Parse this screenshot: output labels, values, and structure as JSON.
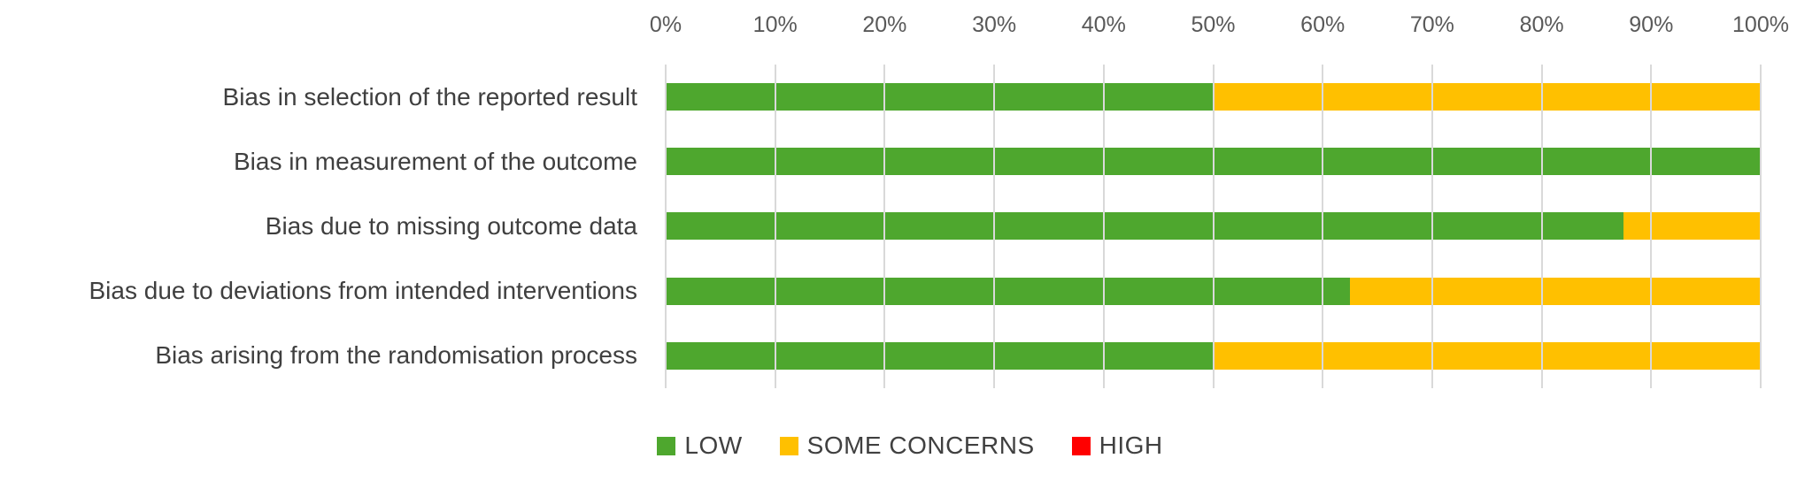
{
  "chart_data": {
    "type": "bar",
    "orientation": "horizontal",
    "stacked": true,
    "title": "",
    "categories": [
      "Bias in selection of the reported result",
      "Bias in measurement of the outcome",
      "Bias due to missing outcome data",
      "Bias due to deviations from intended interventions",
      "Bias arising from the randomisation process"
    ],
    "series": [
      {
        "name": "LOW",
        "color": "#4ea72e",
        "values": [
          50,
          100,
          87.5,
          62.5,
          50
        ]
      },
      {
        "name": "SOME CONCERNS",
        "color": "#ffc000",
        "values": [
          50,
          0,
          12.5,
          37.5,
          50
        ]
      },
      {
        "name": "HIGH",
        "color": "#ff0000",
        "values": [
          0,
          0,
          0,
          0,
          0
        ]
      }
    ],
    "x_axis": {
      "position": "top",
      "min": 0,
      "max": 100,
      "tick_step": 10,
      "tick_labels": [
        "0%",
        "10%",
        "20%",
        "30%",
        "40%",
        "50%",
        "60%",
        "70%",
        "80%",
        "90%",
        "100%"
      ],
      "grid": true,
      "grid_color": "#d9d9d9"
    },
    "legend": {
      "position": "bottom",
      "entries": [
        {
          "label": "LOW",
          "color": "#4ea72e"
        },
        {
          "label": "SOME CONCERNS",
          "color": "#ffc000"
        },
        {
          "label": "HIGH",
          "color": "#ff0000"
        }
      ]
    }
  },
  "colors": {
    "background": "#ffffff",
    "gridline": "#d9d9d9",
    "axis_text": "#595959",
    "label_text": "#3f3f3f"
  }
}
